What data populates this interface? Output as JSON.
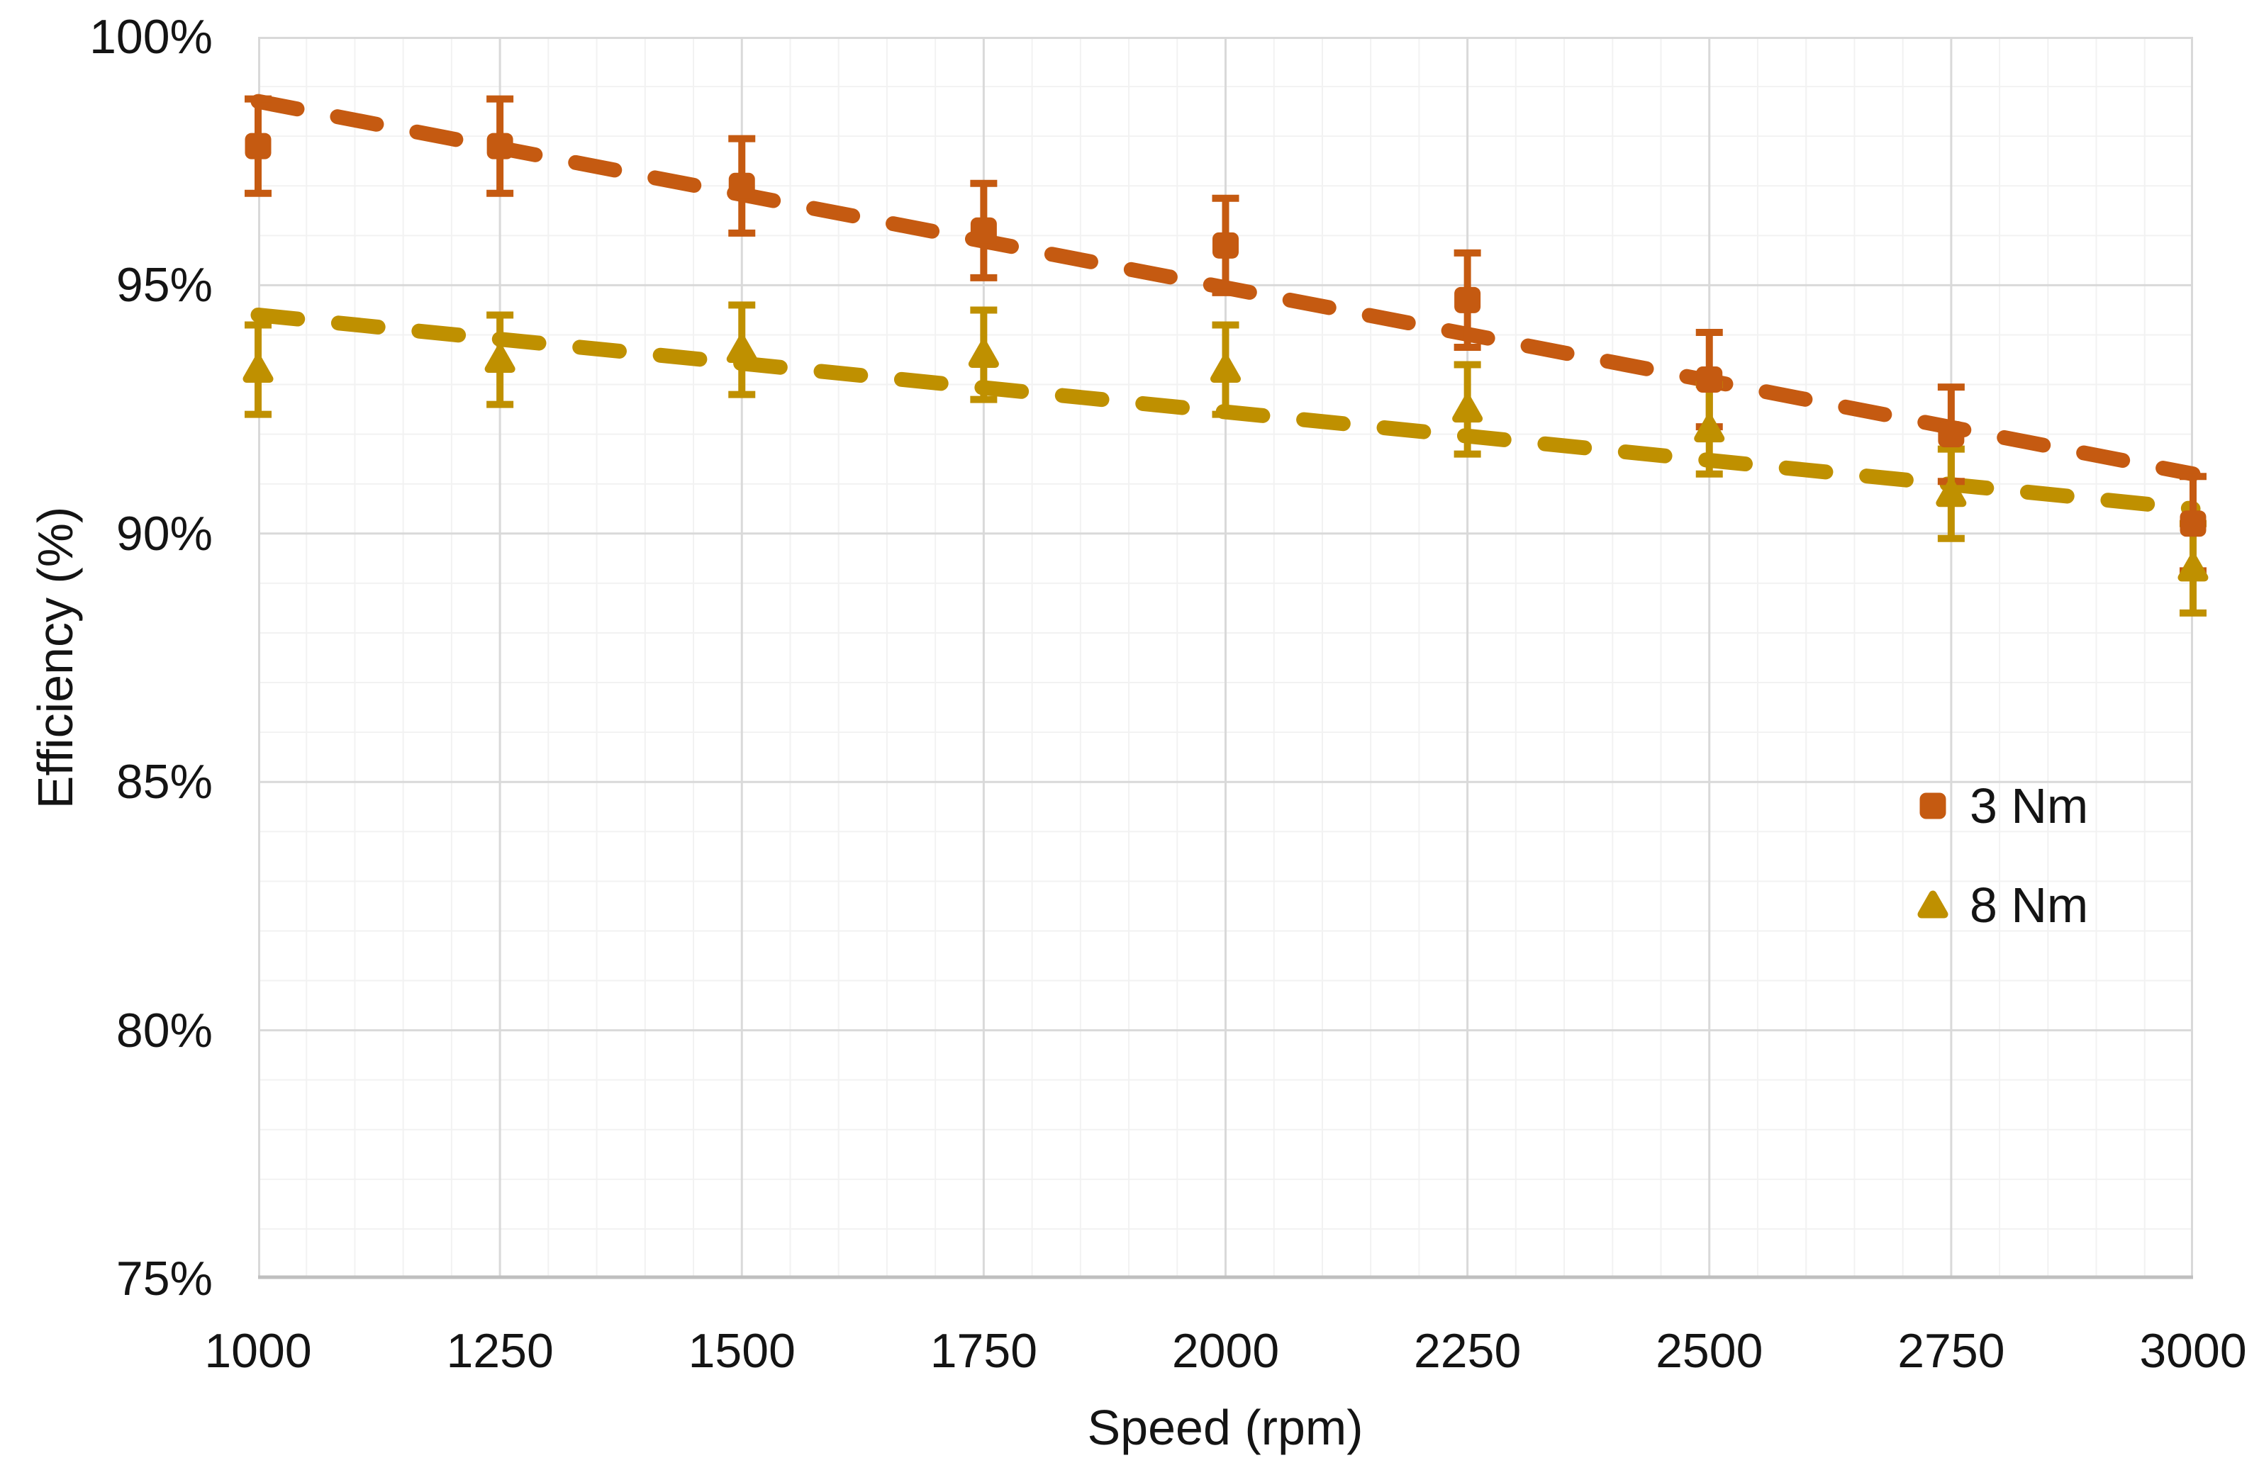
{
  "figure": {
    "background": "#ffffff",
    "text_color": "#141414"
  },
  "axes": {
    "y_title": "Efficiency (%)",
    "x_title": "Speed (rpm)",
    "y_ticks": [
      "100%",
      "95%",
      "90%",
      "85%",
      "80%",
      "75%"
    ],
    "x_ticks": [
      "1000",
      "1250",
      "1500",
      "1750",
      "2000",
      "2250",
      "2500",
      "2750",
      "3000"
    ]
  },
  "legend": {
    "items": [
      {
        "label": "3 Nm",
        "marker": "square",
        "color": "#C55A11"
      },
      {
        "label": "8 Nm",
        "marker": "triangle",
        "color": "#BF9000"
      }
    ]
  },
  "chart_data": {
    "type": "scatter",
    "title": "",
    "xlabel": "Speed (rpm)",
    "ylabel": "Efficiency (%)",
    "xlim": [
      1000,
      3000
    ],
    "ylim": [
      75,
      100
    ],
    "x_major_step": 250,
    "x_minor_step": 50,
    "y_major_step": 5,
    "y_minor_step": 1,
    "grid": {
      "minor_color": "#F2F2F2",
      "major_color": "#D9D9D9",
      "axis_color": "#BFBFBF"
    },
    "legend_position": "inside-right",
    "x": [
      1000,
      1250,
      1500,
      1750,
      2000,
      2250,
      2500,
      2750,
      3000
    ],
    "series": [
      {
        "name": "3 Nm",
        "marker": "square",
        "color": "#C55A11",
        "values": [
          97.8,
          97.8,
          97.0,
          96.1,
          95.8,
          94.7,
          93.1,
          92.0,
          90.2
        ],
        "error": 0.95,
        "trendline": {
          "style": "dashed",
          "x1": 1000,
          "y1": 98.7,
          "x2": 3000,
          "y2": 91.2
        }
      },
      {
        "name": "8 Nm",
        "marker": "triangle",
        "color": "#BF9000",
        "values": [
          93.3,
          93.5,
          93.7,
          93.6,
          93.3,
          92.5,
          92.1,
          90.8,
          89.3
        ],
        "error": 0.9,
        "trendline": {
          "style": "dashed",
          "x1": 1000,
          "y1": 94.4,
          "x2": 3000,
          "y2": 90.5
        }
      }
    ]
  }
}
